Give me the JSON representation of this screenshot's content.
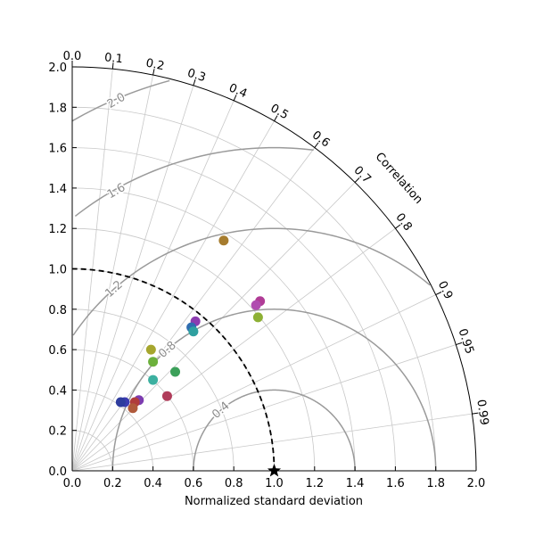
{
  "chart_data": {
    "type": "scatter",
    "subtype": "taylor-diagram",
    "xlabel": "Normalized standard deviation",
    "angular_label": "Correlation",
    "std_range": [
      0,
      2.0
    ],
    "std_ticks": [
      "0.0",
      "0.2",
      "0.4",
      "0.6",
      "0.8",
      "1.0",
      "1.2",
      "1.4",
      "1.6",
      "1.8",
      "2.0"
    ],
    "correlation_ticks": [
      "0.0",
      "0.1",
      "0.2",
      "0.3",
      "0.4",
      "0.5",
      "0.6",
      "0.7",
      "0.8",
      "0.9",
      "0.95",
      "0.99"
    ],
    "rms_contours": [
      "0.4",
      "0.8",
      "1.2",
      "1.6",
      "2.0"
    ],
    "reference": {
      "std": 1.0,
      "marker": "star",
      "color": "#000000"
    },
    "grid": true,
    "points": [
      {
        "x": 0.75,
        "y": 1.14,
        "color": "#a67c2e"
      },
      {
        "x": 0.93,
        "y": 0.84,
        "color": "#b03c96"
      },
      {
        "x": 0.91,
        "y": 0.82,
        "color": "#b04cb0"
      },
      {
        "x": 0.92,
        "y": 0.76,
        "color": "#8db034"
      },
      {
        "x": 0.61,
        "y": 0.74,
        "color": "#8c3cb0"
      },
      {
        "x": 0.59,
        "y": 0.71,
        "color": "#2f6db0"
      },
      {
        "x": 0.6,
        "y": 0.69,
        "color": "#2fa0a0"
      },
      {
        "x": 0.39,
        "y": 0.6,
        "color": "#a6a62e"
      },
      {
        "x": 0.4,
        "y": 0.54,
        "color": "#6cb03c"
      },
      {
        "x": 0.51,
        "y": 0.49,
        "color": "#3ca05a"
      },
      {
        "x": 0.4,
        "y": 0.45,
        "color": "#3cb0a0"
      },
      {
        "x": 0.47,
        "y": 0.37,
        "color": "#b03c5a"
      },
      {
        "x": 0.33,
        "y": 0.35,
        "color": "#7c3cb0"
      },
      {
        "x": 0.31,
        "y": 0.34,
        "color": "#b03c3c"
      },
      {
        "x": 0.26,
        "y": 0.34,
        "color": "#3c3cb0"
      },
      {
        "x": 0.24,
        "y": 0.34,
        "color": "#2e3c9e"
      },
      {
        "x": 0.3,
        "y": 0.31,
        "color": "#b05a3c"
      }
    ]
  }
}
